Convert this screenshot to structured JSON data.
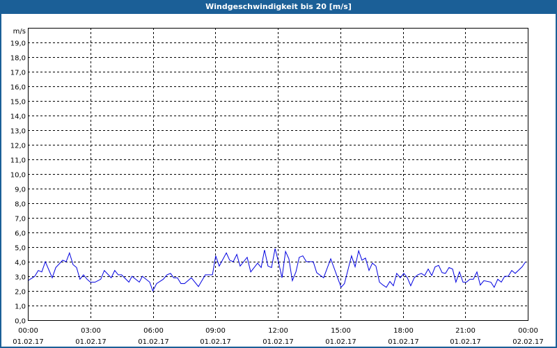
{
  "window": {
    "title": "Windgeschwindigkeit bis 20 [m/s]"
  },
  "chart_data": {
    "type": "line",
    "title": "Windgeschwindigkeit bis 20 [m/s]",
    "ylabel": "m/s",
    "xlabel": "",
    "ylim": [
      0,
      20
    ],
    "xlim_hours": [
      0,
      24
    ],
    "grid": true,
    "line_color": "#0000e0",
    "y_ticks": [
      "0,0",
      "1,0",
      "2,0",
      "3,0",
      "4,0",
      "5,0",
      "6,0",
      "7,0",
      "8,0",
      "9,0",
      "10,0",
      "11,0",
      "12,0",
      "13,0",
      "14,0",
      "15,0",
      "16,0",
      "17,0",
      "18,0",
      "19,0"
    ],
    "x_ticks": [
      {
        "time": "00:00",
        "date": "01.02.17"
      },
      {
        "time": "03:00",
        "date": "01.02.17"
      },
      {
        "time": "06:00",
        "date": "01.02.17"
      },
      {
        "time": "09:00",
        "date": "01.02.17"
      },
      {
        "time": "12:00",
        "date": "01.02.17"
      },
      {
        "time": "15:00",
        "date": "01.02.17"
      },
      {
        "time": "18:00",
        "date": "01.02.17"
      },
      {
        "time": "21:00",
        "date": "01.02.17"
      },
      {
        "time": "00:00",
        "date": "02.02.17"
      }
    ],
    "series": [
      {
        "name": "Windgeschwindigkeit",
        "x_hours": [
          0,
          0.33,
          0.5,
          0.67,
          0.84,
          1.17,
          1.34,
          1.67,
          1.84,
          2.0,
          2.17,
          2.34,
          2.5,
          2.67,
          2.84,
          3.0,
          3.23,
          3.5,
          3.67,
          4.0,
          4.17,
          4.34,
          4.5,
          4.85,
          5.0,
          5.35,
          5.5,
          5.85,
          6.0,
          6.18,
          6.5,
          6.68,
          6.85,
          7.0,
          7.18,
          7.35,
          7.52,
          7.85,
          8.19,
          8.52,
          8.86,
          9.02,
          9.19,
          9.53,
          9.69,
          9.86,
          10.03,
          10.19,
          10.53,
          10.7,
          11.03,
          11.2,
          11.36,
          11.53,
          11.7,
          11.87,
          12.03,
          12.2,
          12.37,
          12.53,
          12.7,
          12.87,
          13.03,
          13.2,
          13.37,
          13.7,
          13.87,
          14.2,
          14.54,
          15.04,
          15.2,
          15.54,
          15.71,
          15.88,
          16.04,
          16.21,
          16.38,
          16.54,
          16.71,
          16.88,
          17.05,
          17.21,
          17.38,
          17.55,
          17.71,
          17.88,
          18.05,
          18.22,
          18.38,
          18.55,
          18.72,
          18.89,
          19.05,
          19.22,
          19.39,
          19.55,
          19.72,
          19.89,
          20.05,
          20.22,
          20.39,
          20.55,
          20.72,
          20.89,
          21.06,
          21.22,
          21.39,
          21.56,
          21.72,
          21.89,
          22.23,
          22.39,
          22.56,
          22.73,
          22.89,
          23.06,
          23.23,
          23.4,
          23.73,
          23.9
        ],
        "values": [
          2.7,
          3.0,
          3.4,
          3.3,
          4.0,
          2.9,
          3.6,
          4.1,
          4.0,
          4.6,
          3.8,
          3.6,
          2.8,
          3.1,
          2.8,
          2.6,
          2.6,
          2.8,
          3.4,
          2.9,
          3.4,
          3.1,
          3.1,
          2.6,
          3.0,
          2.6,
          3.0,
          2.6,
          2.0,
          2.5,
          2.8,
          3.1,
          3.2,
          2.9,
          2.9,
          2.5,
          2.5,
          2.9,
          2.3,
          3.1,
          3.1,
          4.4,
          3.7,
          4.6,
          4.1,
          4.0,
          4.5,
          3.7,
          4.3,
          3.3,
          3.9,
          3.6,
          4.8,
          3.7,
          3.6,
          4.9,
          4.0,
          2.9,
          4.7,
          4.2,
          2.7,
          3.3,
          4.3,
          4.4,
          4.0,
          4.0,
          3.25,
          2.9,
          4.2,
          2.25,
          2.5,
          4.4,
          3.65,
          4.75,
          4.1,
          4.25,
          3.4,
          3.9,
          3.7,
          2.6,
          2.4,
          2.25,
          2.65,
          2.35,
          3.2,
          2.9,
          3.2,
          2.9,
          2.35,
          2.9,
          3.1,
          3.2,
          3.05,
          3.5,
          3.05,
          3.65,
          3.75,
          3.25,
          3.2,
          3.6,
          3.5,
          2.6,
          3.3,
          2.6,
          2.6,
          2.8,
          2.8,
          3.3,
          2.4,
          2.7,
          2.6,
          2.25,
          2.8,
          2.6,
          3.0,
          3.0,
          3.4,
          3.2,
          3.65,
          4.0
        ]
      }
    ]
  }
}
